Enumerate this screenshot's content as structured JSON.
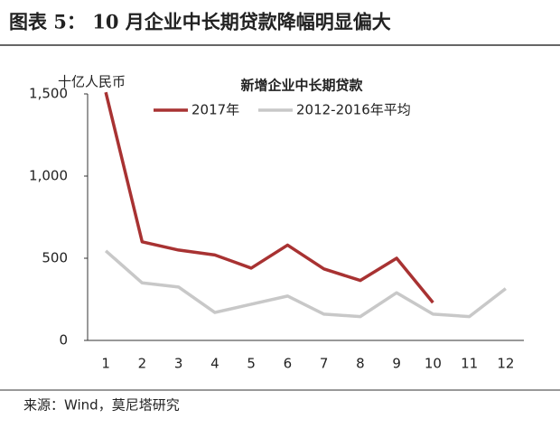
{
  "header": {
    "title": "图表 5： 10 月企业中长期贷款降幅明显偏大"
  },
  "chart_data": {
    "type": "line",
    "title": "新增企业中长期贷款",
    "y_label": "十亿人民币",
    "categories": [
      "1",
      "2",
      "3",
      "4",
      "5",
      "6",
      "7",
      "8",
      "9",
      "10",
      "11",
      "12"
    ],
    "series": [
      {
        "name": "2017年",
        "color": "#a83232",
        "values": [
          1510,
          600,
          550,
          520,
          440,
          580,
          435,
          365,
          500,
          230,
          null,
          null
        ]
      },
      {
        "name": "2012-2016年平均",
        "color": "#c8c8c8",
        "values": [
          545,
          350,
          325,
          170,
          220,
          270,
          160,
          145,
          290,
          160,
          145,
          315
        ]
      }
    ],
    "ylim": [
      0,
      1500
    ],
    "yticks": [
      0,
      500,
      {
        "value": 1000,
        "label": "1,000"
      },
      {
        "value": 1500,
        "label": "1,500"
      }
    ],
    "grid": false
  },
  "footer": {
    "source": "来源：Wind，莫尼塔研究"
  }
}
